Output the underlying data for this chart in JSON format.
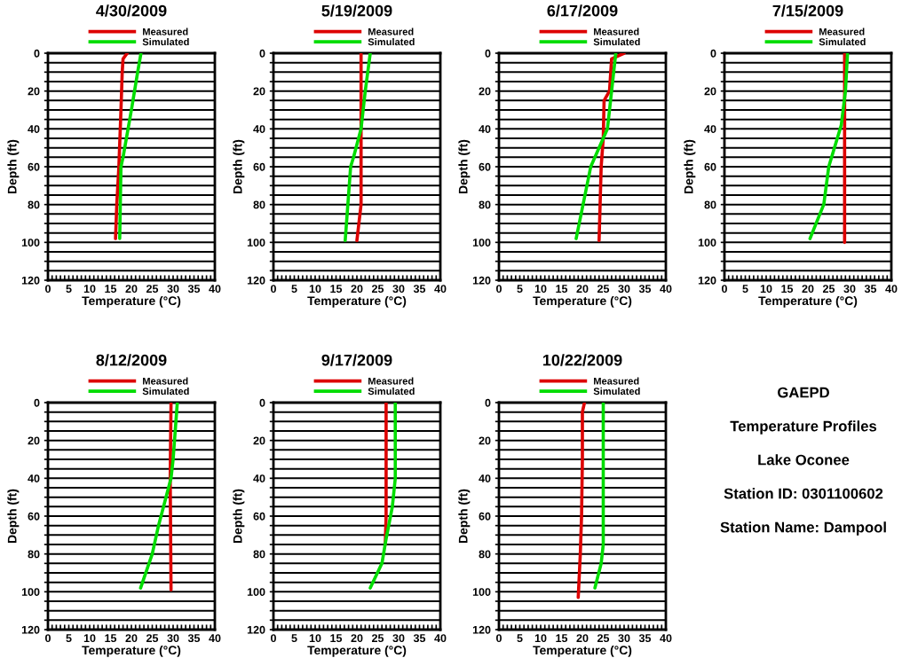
{
  "chart_data": [
    {
      "type": "line",
      "title": "4/30/2009",
      "xlabel": "Temperature (°C)",
      "ylabel": "Depth (ft)",
      "xlim": [
        0,
        40
      ],
      "ylim": [
        120,
        0
      ],
      "grid": "y",
      "legend": "top",
      "xticks": [
        0,
        {
          "value": 1,
          "label": null
        },
        {
          "value": 2,
          "label": null
        },
        {
          "value": 3,
          "label": null
        },
        {
          "value": 4,
          "label": null
        },
        5,
        {
          "value": 6,
          "label": null
        },
        {
          "value": 7,
          "label": null
        },
        {
          "value": 8,
          "label": null
        },
        {
          "value": 9,
          "label": null
        },
        10,
        {
          "value": 11,
          "label": null
        },
        {
          "value": 12,
          "label": null
        },
        {
          "value": 13,
          "label": null
        },
        {
          "value": 14,
          "label": null
        },
        15,
        {
          "value": 16,
          "label": null
        },
        {
          "value": 17,
          "label": null
        },
        {
          "value": 18,
          "label": null
        },
        {
          "value": 19,
          "label": null
        },
        20,
        {
          "value": 21,
          "label": null
        },
        {
          "value": 22,
          "label": null
        },
        {
          "value": 23,
          "label": null
        },
        {
          "value": 24,
          "label": null
        },
        25,
        {
          "value": 26,
          "label": null
        },
        {
          "value": 27,
          "label": null
        },
        {
          "value": 28,
          "label": null
        },
        {
          "value": 29,
          "label": null
        },
        30,
        {
          "value": 31,
          "label": null
        },
        {
          "value": 32,
          "label": null
        },
        {
          "value": 33,
          "label": null
        },
        {
          "value": 34,
          "label": null
        },
        35,
        {
          "value": 36,
          "label": null
        },
        {
          "value": 37,
          "label": null
        },
        {
          "value": 38,
          "label": null
        },
        {
          "value": 39,
          "label": null
        },
        40
      ],
      "yticks": [
        0,
        {
          "value": 5,
          "label": null
        },
        {
          "value": 10,
          "label": null
        },
        {
          "value": 15,
          "label": null
        },
        20,
        {
          "value": 25,
          "label": null
        },
        {
          "value": 30,
          "label": null
        },
        {
          "value": 35,
          "label": null
        },
        40,
        {
          "value": 45,
          "label": null
        },
        {
          "value": 50,
          "label": null
        },
        {
          "value": 55,
          "label": null
        },
        60,
        {
          "value": 65,
          "label": null
        },
        {
          "value": 70,
          "label": null
        },
        {
          "value": 75,
          "label": null
        },
        80,
        {
          "value": 85,
          "label": null
        },
        {
          "value": 90,
          "label": null
        },
        {
          "value": 95,
          "label": null
        },
        100,
        {
          "value": 105,
          "label": null
        },
        {
          "value": 110,
          "label": null
        },
        {
          "value": 115,
          "label": null
        },
        120
      ],
      "series": [
        {
          "name": "Measured",
          "color": "#dd0000",
          "x": [
            19,
            18,
            17.8,
            17.5,
            17,
            16.5,
            16.2
          ],
          "values": [
            0,
            3,
            10,
            30,
            60,
            80,
            98
          ]
        },
        {
          "name": "Simulated",
          "color": "#00dd00",
          "x": [
            22.3,
            21.5,
            20,
            18,
            17.5,
            17.2
          ],
          "values": [
            0,
            10,
            30,
            55,
            60,
            98
          ]
        }
      ]
    },
    {
      "type": "line",
      "title": "5/19/2009",
      "xlabel": "Temperature (°C)",
      "ylabel": "Depth (ft)",
      "xlim": [
        0,
        40
      ],
      "ylim": [
        120,
        0
      ],
      "grid": "y",
      "legend": "top",
      "xticks": [
        0,
        {
          "value": 1,
          "label": null
        },
        {
          "value": 2,
          "label": null
        },
        {
          "value": 3,
          "label": null
        },
        {
          "value": 4,
          "label": null
        },
        5,
        {
          "value": 6,
          "label": null
        },
        {
          "value": 7,
          "label": null
        },
        {
          "value": 8,
          "label": null
        },
        {
          "value": 9,
          "label": null
        },
        10,
        {
          "value": 11,
          "label": null
        },
        {
          "value": 12,
          "label": null
        },
        {
          "value": 13,
          "label": null
        },
        {
          "value": 14,
          "label": null
        },
        15,
        {
          "value": 16,
          "label": null
        },
        {
          "value": 17,
          "label": null
        },
        {
          "value": 18,
          "label": null
        },
        {
          "value": 19,
          "label": null
        },
        20,
        {
          "value": 21,
          "label": null
        },
        {
          "value": 22,
          "label": null
        },
        {
          "value": 23,
          "label": null
        },
        {
          "value": 24,
          "label": null
        },
        25,
        {
          "value": 26,
          "label": null
        },
        {
          "value": 27,
          "label": null
        },
        {
          "value": 28,
          "label": null
        },
        {
          "value": 29,
          "label": null
        },
        30,
        {
          "value": 31,
          "label": null
        },
        {
          "value": 32,
          "label": null
        },
        {
          "value": 33,
          "label": null
        },
        {
          "value": 34,
          "label": null
        },
        35,
        {
          "value": 36,
          "label": null
        },
        {
          "value": 37,
          "label": null
        },
        {
          "value": 38,
          "label": null
        },
        {
          "value": 39,
          "label": null
        },
        40
      ],
      "yticks": [
        0,
        {
          "value": 5,
          "label": null
        },
        {
          "value": 10,
          "label": null
        },
        {
          "value": 15,
          "label": null
        },
        20,
        {
          "value": 25,
          "label": null
        },
        {
          "value": 30,
          "label": null
        },
        {
          "value": 35,
          "label": null
        },
        40,
        {
          "value": 45,
          "label": null
        },
        {
          "value": 50,
          "label": null
        },
        {
          "value": 55,
          "label": null
        },
        60,
        {
          "value": 65,
          "label": null
        },
        {
          "value": 70,
          "label": null
        },
        {
          "value": 75,
          "label": null
        },
        80,
        {
          "value": 85,
          "label": null
        },
        {
          "value": 90,
          "label": null
        },
        {
          "value": 95,
          "label": null
        },
        100,
        {
          "value": 105,
          "label": null
        },
        {
          "value": 110,
          "label": null
        },
        {
          "value": 115,
          "label": null
        },
        120
      ],
      "series": [
        {
          "name": "Measured",
          "color": "#dd0000",
          "x": [
            21,
            21,
            21,
            20
          ],
          "values": [
            0,
            40,
            80,
            99
          ]
        },
        {
          "name": "Simulated",
          "color": "#00dd00",
          "x": [
            23.2,
            22,
            21,
            19.2,
            18.5,
            17.2
          ],
          "values": [
            0,
            20,
            40,
            55,
            60,
            99
          ]
        }
      ]
    },
    {
      "type": "line",
      "title": "6/17/2009",
      "xlabel": "Temperature (°C)",
      "ylabel": "Depth (ft)",
      "xlim": [
        0,
        40
      ],
      "ylim": [
        120,
        0
      ],
      "grid": "y",
      "legend": "top",
      "xticks": [
        0,
        {
          "value": 1,
          "label": null
        },
        {
          "value": 2,
          "label": null
        },
        {
          "value": 3,
          "label": null
        },
        {
          "value": 4,
          "label": null
        },
        5,
        {
          "value": 6,
          "label": null
        },
        {
          "value": 7,
          "label": null
        },
        {
          "value": 8,
          "label": null
        },
        {
          "value": 9,
          "label": null
        },
        10,
        {
          "value": 11,
          "label": null
        },
        {
          "value": 12,
          "label": null
        },
        {
          "value": 13,
          "label": null
        },
        {
          "value": 14,
          "label": null
        },
        15,
        {
          "value": 16,
          "label": null
        },
        {
          "value": 17,
          "label": null
        },
        {
          "value": 18,
          "label": null
        },
        {
          "value": 19,
          "label": null
        },
        20,
        {
          "value": 21,
          "label": null
        },
        {
          "value": 22,
          "label": null
        },
        {
          "value": 23,
          "label": null
        },
        {
          "value": 24,
          "label": null
        },
        25,
        {
          "value": 26,
          "label": null
        },
        {
          "value": 27,
          "label": null
        },
        {
          "value": 28,
          "label": null
        },
        {
          "value": 29,
          "label": null
        },
        30,
        {
          "value": 31,
          "label": null
        },
        {
          "value": 32,
          "label": null
        },
        {
          "value": 33,
          "label": null
        },
        {
          "value": 34,
          "label": null
        },
        35,
        {
          "value": 36,
          "label": null
        },
        {
          "value": 37,
          "label": null
        },
        {
          "value": 38,
          "label": null
        },
        {
          "value": 39,
          "label": null
        },
        40
      ],
      "yticks": [
        0,
        {
          "value": 5,
          "label": null
        },
        {
          "value": 10,
          "label": null
        },
        {
          "value": 15,
          "label": null
        },
        20,
        {
          "value": 25,
          "label": null
        },
        {
          "value": 30,
          "label": null
        },
        {
          "value": 35,
          "label": null
        },
        40,
        {
          "value": 45,
          "label": null
        },
        {
          "value": 50,
          "label": null
        },
        {
          "value": 55,
          "label": null
        },
        60,
        {
          "value": 65,
          "label": null
        },
        {
          "value": 70,
          "label": null
        },
        {
          "value": 75,
          "label": null
        },
        80,
        {
          "value": 85,
          "label": null
        },
        {
          "value": 90,
          "label": null
        },
        {
          "value": 95,
          "label": null
        },
        100,
        {
          "value": 105,
          "label": null
        },
        {
          "value": 110,
          "label": null
        },
        {
          "value": 115,
          "label": null
        },
        120
      ],
      "series": [
        {
          "name": "Measured",
          "color": "#dd0000",
          "x": [
            30,
            27,
            26.5,
            25.2,
            25,
            24.5,
            24
          ],
          "values": [
            0,
            3,
            20,
            25,
            45,
            60,
            99
          ]
        },
        {
          "name": "Simulated",
          "color": "#00dd00",
          "x": [
            28,
            27.5,
            26,
            22,
            18.5
          ],
          "values": [
            0,
            10,
            40,
            60,
            98
          ]
        }
      ]
    },
    {
      "type": "line",
      "title": "7/15/2009",
      "xlabel": "Temperature (°C)",
      "ylabel": "Depth (ft)",
      "xlim": [
        0,
        40
      ],
      "ylim": [
        120,
        0
      ],
      "grid": "y",
      "legend": "top",
      "xticks": [
        0,
        {
          "value": 1,
          "label": null
        },
        {
          "value": 2,
          "label": null
        },
        {
          "value": 3,
          "label": null
        },
        {
          "value": 4,
          "label": null
        },
        5,
        {
          "value": 6,
          "label": null
        },
        {
          "value": 7,
          "label": null
        },
        {
          "value": 8,
          "label": null
        },
        {
          "value": 9,
          "label": null
        },
        10,
        {
          "value": 11,
          "label": null
        },
        {
          "value": 12,
          "label": null
        },
        {
          "value": 13,
          "label": null
        },
        {
          "value": 14,
          "label": null
        },
        15,
        {
          "value": 16,
          "label": null
        },
        {
          "value": 17,
          "label": null
        },
        {
          "value": 18,
          "label": null
        },
        {
          "value": 19,
          "label": null
        },
        20,
        {
          "value": 21,
          "label": null
        },
        {
          "value": 22,
          "label": null
        },
        {
          "value": 23,
          "label": null
        },
        {
          "value": 24,
          "label": null
        },
        25,
        {
          "value": 26,
          "label": null
        },
        {
          "value": 27,
          "label": null
        },
        {
          "value": 28,
          "label": null
        },
        {
          "value": 29,
          "label": null
        },
        30,
        {
          "value": 31,
          "label": null
        },
        {
          "value": 32,
          "label": null
        },
        {
          "value": 33,
          "label": null
        },
        {
          "value": 34,
          "label": null
        },
        35,
        {
          "value": 36,
          "label": null
        },
        {
          "value": 37,
          "label": null
        },
        {
          "value": 38,
          "label": null
        },
        {
          "value": 39,
          "label": null
        },
        40
      ],
      "yticks": [
        0,
        {
          "value": 5,
          "label": null
        },
        {
          "value": 10,
          "label": null
        },
        {
          "value": 15,
          "label": null
        },
        20,
        {
          "value": 25,
          "label": null
        },
        {
          "value": 30,
          "label": null
        },
        {
          "value": 35,
          "label": null
        },
        40,
        {
          "value": 45,
          "label": null
        },
        {
          "value": 50,
          "label": null
        },
        {
          "value": 55,
          "label": null
        },
        60,
        {
          "value": 65,
          "label": null
        },
        {
          "value": 70,
          "label": null
        },
        {
          "value": 75,
          "label": null
        },
        80,
        {
          "value": 85,
          "label": null
        },
        {
          "value": 90,
          "label": null
        },
        {
          "value": 95,
          "label": null
        },
        100,
        {
          "value": 105,
          "label": null
        },
        {
          "value": 110,
          "label": null
        },
        {
          "value": 115,
          "label": null
        },
        120
      ],
      "series": [
        {
          "name": "Measured",
          "color": "#dd0000",
          "x": [
            28.8,
            28.8
          ],
          "values": [
            0,
            100
          ]
        },
        {
          "name": "Simulated",
          "color": "#00dd00",
          "x": [
            29.5,
            29,
            28,
            25,
            23.8,
            20.5
          ],
          "values": [
            0,
            20,
            38,
            60,
            80,
            98
          ]
        }
      ]
    },
    {
      "type": "line",
      "title": "8/12/2009",
      "xlabel": "Temperature (°C)",
      "ylabel": "Depth (ft)",
      "xlim": [
        0,
        40
      ],
      "ylim": [
        120,
        0
      ],
      "grid": "y",
      "legend": "top",
      "xticks": [
        0,
        {
          "value": 1,
          "label": null
        },
        {
          "value": 2,
          "label": null
        },
        {
          "value": 3,
          "label": null
        },
        {
          "value": 4,
          "label": null
        },
        5,
        {
          "value": 6,
          "label": null
        },
        {
          "value": 7,
          "label": null
        },
        {
          "value": 8,
          "label": null
        },
        {
          "value": 9,
          "label": null
        },
        10,
        {
          "value": 11,
          "label": null
        },
        {
          "value": 12,
          "label": null
        },
        {
          "value": 13,
          "label": null
        },
        {
          "value": 14,
          "label": null
        },
        15,
        {
          "value": 16,
          "label": null
        },
        {
          "value": 17,
          "label": null
        },
        {
          "value": 18,
          "label": null
        },
        {
          "value": 19,
          "label": null
        },
        20,
        {
          "value": 21,
          "label": null
        },
        {
          "value": 22,
          "label": null
        },
        {
          "value": 23,
          "label": null
        },
        {
          "value": 24,
          "label": null
        },
        25,
        {
          "value": 26,
          "label": null
        },
        {
          "value": 27,
          "label": null
        },
        {
          "value": 28,
          "label": null
        },
        {
          "value": 29,
          "label": null
        },
        30,
        {
          "value": 31,
          "label": null
        },
        {
          "value": 32,
          "label": null
        },
        {
          "value": 33,
          "label": null
        },
        {
          "value": 34,
          "label": null
        },
        35,
        {
          "value": 36,
          "label": null
        },
        {
          "value": 37,
          "label": null
        },
        {
          "value": 38,
          "label": null
        },
        {
          "value": 39,
          "label": null
        },
        40
      ],
      "yticks": [
        0,
        {
          "value": 5,
          "label": null
        },
        {
          "value": 10,
          "label": null
        },
        {
          "value": 15,
          "label": null
        },
        20,
        {
          "value": 25,
          "label": null
        },
        {
          "value": 30,
          "label": null
        },
        {
          "value": 35,
          "label": null
        },
        40,
        {
          "value": 45,
          "label": null
        },
        {
          "value": 50,
          "label": null
        },
        {
          "value": 55,
          "label": null
        },
        60,
        {
          "value": 65,
          "label": null
        },
        {
          "value": 70,
          "label": null
        },
        {
          "value": 75,
          "label": null
        },
        80,
        {
          "value": 85,
          "label": null
        },
        {
          "value": 90,
          "label": null
        },
        {
          "value": 95,
          "label": null
        },
        100,
        {
          "value": 105,
          "label": null
        },
        {
          "value": 110,
          "label": null
        },
        {
          "value": 115,
          "label": null
        },
        120
      ],
      "series": [
        {
          "name": "Measured",
          "color": "#dd0000",
          "x": [
            29.5,
            29.3,
            29.5
          ],
          "values": [
            0,
            40,
            99
          ]
        },
        {
          "name": "Simulated",
          "color": "#00dd00",
          "x": [
            31,
            30,
            29.5,
            26.5,
            25,
            22.2
          ],
          "values": [
            0,
            30,
            40,
            65,
            80,
            98
          ]
        }
      ]
    },
    {
      "type": "line",
      "title": "9/17/2009",
      "xlabel": "Temperature (°C)",
      "ylabel": "Depth (ft)",
      "xlim": [
        0,
        40
      ],
      "ylim": [
        120,
        0
      ],
      "grid": "y",
      "legend": "top",
      "xticks": [
        0,
        {
          "value": 1,
          "label": null
        },
        {
          "value": 2,
          "label": null
        },
        {
          "value": 3,
          "label": null
        },
        {
          "value": 4,
          "label": null
        },
        5,
        {
          "value": 6,
          "label": null
        },
        {
          "value": 7,
          "label": null
        },
        {
          "value": 8,
          "label": null
        },
        {
          "value": 9,
          "label": null
        },
        10,
        {
          "value": 11,
          "label": null
        },
        {
          "value": 12,
          "label": null
        },
        {
          "value": 13,
          "label": null
        },
        {
          "value": 14,
          "label": null
        },
        15,
        {
          "value": 16,
          "label": null
        },
        {
          "value": 17,
          "label": null
        },
        {
          "value": 18,
          "label": null
        },
        {
          "value": 19,
          "label": null
        },
        20,
        {
          "value": 21,
          "label": null
        },
        {
          "value": 22,
          "label": null
        },
        {
          "value": 23,
          "label": null
        },
        {
          "value": 24,
          "label": null
        },
        25,
        {
          "value": 26,
          "label": null
        },
        {
          "value": 27,
          "label": null
        },
        {
          "value": 28,
          "label": null
        },
        {
          "value": 29,
          "label": null
        },
        30,
        {
          "value": 31,
          "label": null
        },
        {
          "value": 32,
          "label": null
        },
        {
          "value": 33,
          "label": null
        },
        {
          "value": 34,
          "label": null
        },
        35,
        {
          "value": 36,
          "label": null
        },
        {
          "value": 37,
          "label": null
        },
        {
          "value": 38,
          "label": null
        },
        {
          "value": 39,
          "label": null
        },
        40
      ],
      "yticks": [
        0,
        {
          "value": 5,
          "label": null
        },
        {
          "value": 10,
          "label": null
        },
        {
          "value": 15,
          "label": null
        },
        20,
        {
          "value": 25,
          "label": null
        },
        {
          "value": 30,
          "label": null
        },
        {
          "value": 35,
          "label": null
        },
        40,
        {
          "value": 45,
          "label": null
        },
        {
          "value": 50,
          "label": null
        },
        {
          "value": 55,
          "label": null
        },
        60,
        {
          "value": 65,
          "label": null
        },
        {
          "value": 70,
          "label": null
        },
        {
          "value": 75,
          "label": null
        },
        80,
        {
          "value": 85,
          "label": null
        },
        {
          "value": 90,
          "label": null
        },
        {
          "value": 95,
          "label": null
        },
        100,
        {
          "value": 105,
          "label": null
        },
        {
          "value": 110,
          "label": null
        },
        {
          "value": 115,
          "label": null
        },
        120
      ],
      "series": [
        {
          "name": "Measured",
          "color": "#dd0000",
          "x": [
            27,
            27,
            26.8
          ],
          "values": [
            0,
            60,
            75
          ]
        },
        {
          "name": "Simulated",
          "color": "#00dd00",
          "x": [
            29.2,
            29.2,
            28.5,
            27,
            26,
            23.2
          ],
          "values": [
            0,
            40,
            55,
            72,
            85,
            98
          ]
        }
      ]
    },
    {
      "type": "line",
      "title": "10/22/2009",
      "xlabel": "Temperature (°C)",
      "ylabel": "Depth (ft)",
      "xlim": [
        0,
        40
      ],
      "ylim": [
        120,
        0
      ],
      "grid": "y",
      "legend": "top",
      "xticks": [
        0,
        {
          "value": 1,
          "label": null
        },
        {
          "value": 2,
          "label": null
        },
        {
          "value": 3,
          "label": null
        },
        {
          "value": 4,
          "label": null
        },
        5,
        {
          "value": 6,
          "label": null
        },
        {
          "value": 7,
          "label": null
        },
        {
          "value": 8,
          "label": null
        },
        {
          "value": 9,
          "label": null
        },
        10,
        {
          "value": 11,
          "label": null
        },
        {
          "value": 12,
          "label": null
        },
        {
          "value": 13,
          "label": null
        },
        {
          "value": 14,
          "label": null
        },
        15,
        {
          "value": 16,
          "label": null
        },
        {
          "value": 17,
          "label": null
        },
        {
          "value": 18,
          "label": null
        },
        {
          "value": 19,
          "label": null
        },
        20,
        {
          "value": 21,
          "label": null
        },
        {
          "value": 22,
          "label": null
        },
        {
          "value": 23,
          "label": null
        },
        {
          "value": 24,
          "label": null
        },
        25,
        {
          "value": 26,
          "label": null
        },
        {
          "value": 27,
          "label": null
        },
        {
          "value": 28,
          "label": null
        },
        {
          "value": 29,
          "label": null
        },
        30,
        {
          "value": 31,
          "label": null
        },
        {
          "value": 32,
          "label": null
        },
        {
          "value": 33,
          "label": null
        },
        {
          "value": 34,
          "label": null
        },
        35,
        {
          "value": 36,
          "label": null
        },
        {
          "value": 37,
          "label": null
        },
        {
          "value": 38,
          "label": null
        },
        {
          "value": 39,
          "label": null
        },
        40
      ],
      "yticks": [
        0,
        {
          "value": 5,
          "label": null
        },
        {
          "value": 10,
          "label": null
        },
        {
          "value": 15,
          "label": null
        },
        20,
        {
          "value": 25,
          "label": null
        },
        {
          "value": 30,
          "label": null
        },
        {
          "value": 35,
          "label": null
        },
        40,
        {
          "value": 45,
          "label": null
        },
        {
          "value": 50,
          "label": null
        },
        {
          "value": 55,
          "label": null
        },
        60,
        {
          "value": 65,
          "label": null
        },
        {
          "value": 70,
          "label": null
        },
        {
          "value": 75,
          "label": null
        },
        80,
        {
          "value": 85,
          "label": null
        },
        {
          "value": 90,
          "label": null
        },
        {
          "value": 95,
          "label": null
        },
        100,
        {
          "value": 105,
          "label": null
        },
        {
          "value": 110,
          "label": null
        },
        {
          "value": 115,
          "label": null
        },
        120
      ],
      "series": [
        {
          "name": "Measured",
          "color": "#dd0000",
          "x": [
            20.5,
            20,
            20,
            19.8,
            19.5,
            19
          ],
          "values": [
            0,
            5,
            30,
            60,
            80,
            103
          ]
        },
        {
          "name": "Simulated",
          "color": "#00dd00",
          "x": [
            25,
            25,
            24.5,
            23
          ],
          "values": [
            0,
            75,
            85,
            98
          ]
        }
      ]
    },
    {
      "type": "other",
      "title": "GAEPD",
      "annotations": [
        "Temperature Profiles",
        "Lake Oconee",
        "Station ID: 0301100602",
        "Station Name: Dampool"
      ]
    }
  ]
}
